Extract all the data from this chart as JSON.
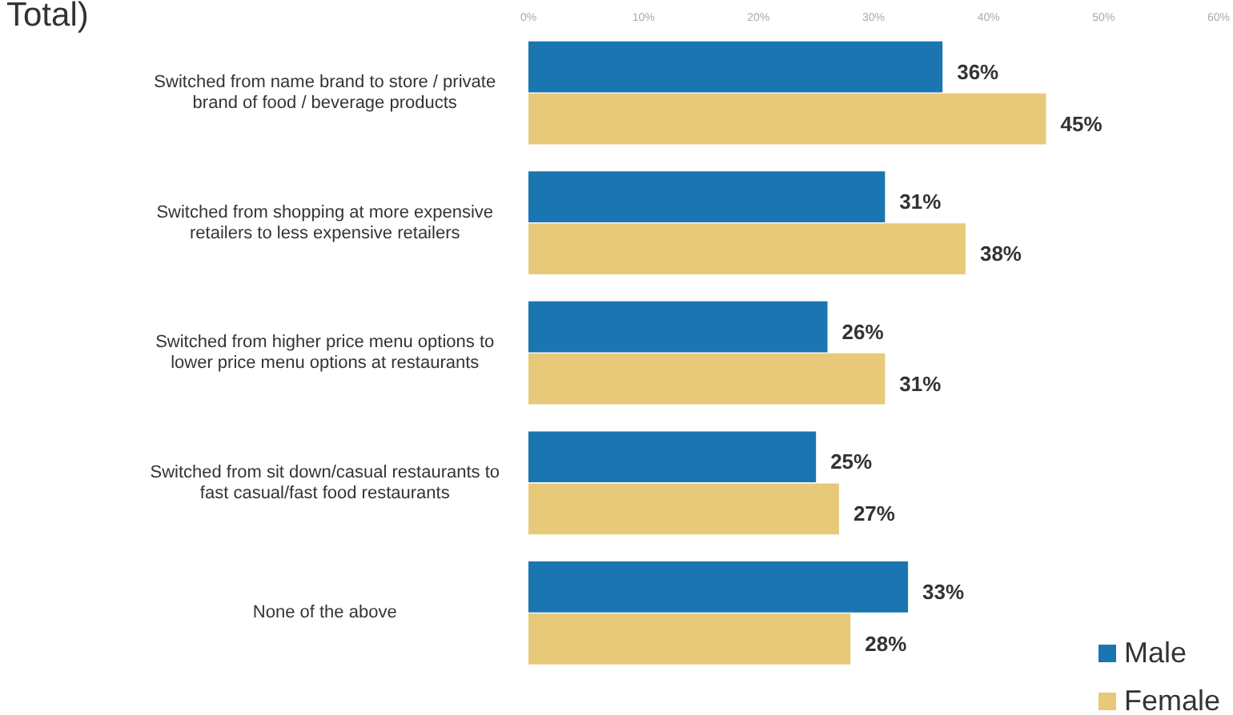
{
  "chart_data": {
    "type": "bar",
    "orientation": "horizontal",
    "title": "Total)",
    "categories": [
      "Switched from name brand to store / private brand of food / beverage products",
      "Switched from shopping at more expensive retailers to less expensive retailers",
      "Switched from higher price menu options to lower price menu options at restaurants",
      "Switched from sit down/casual restaurants to fast casual/fast food restaurants",
      "None of the above"
    ],
    "series": [
      {
        "name": "Male",
        "color": "#1a75b0",
        "values": [
          36,
          31,
          26,
          25,
          33
        ],
        "value_labels": [
          "36%",
          "31%",
          "26%",
          "25%",
          "33%"
        ]
      },
      {
        "name": "Female",
        "color": "#e8c97a",
        "values": [
          45,
          38,
          31,
          27,
          28
        ],
        "value_labels": [
          "45%",
          "38%",
          "31%",
          "27%",
          "28%"
        ]
      }
    ],
    "xlim": [
      0,
      60
    ],
    "xticks": [
      {
        "value": 0,
        "label": "0%"
      },
      {
        "value": 10,
        "label": "10%"
      },
      {
        "value": 20,
        "label": "20%"
      },
      {
        "value": 30,
        "label": "30%"
      },
      {
        "value": 40,
        "label": "40%"
      },
      {
        "value": 50,
        "label": "50%"
      },
      {
        "value": 60,
        "label": "60%"
      }
    ],
    "grid": false,
    "legend": "bottom right"
  }
}
